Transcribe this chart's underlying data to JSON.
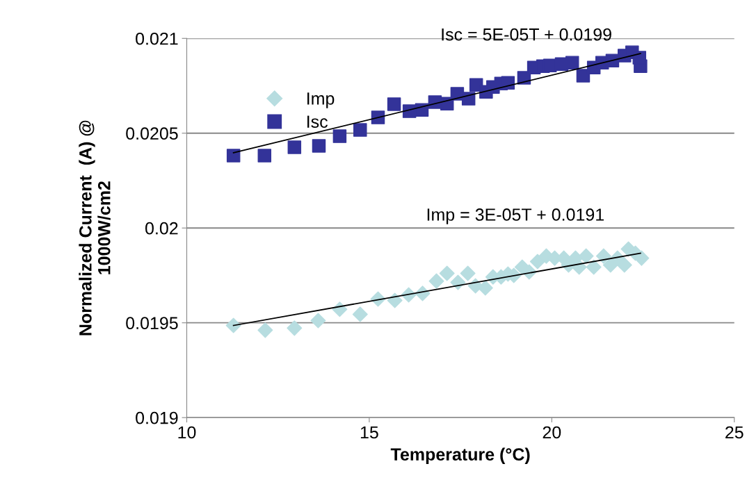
{
  "chart_data": {
    "type": "scatter",
    "xlabel": "Temperature (°C)",
    "ylabel": "Normalized Current  (A) @\n1000W/cm2",
    "xlim": [
      10,
      25
    ],
    "xticks": [
      10,
      15,
      20,
      25
    ],
    "ylim": [
      0.019,
      0.021
    ],
    "yticks": [
      0.019,
      0.0195,
      0.02,
      0.0205,
      0.021
    ],
    "grid": "y",
    "legend": "upper left",
    "annotations": [
      "Isc = 5E-05T + 0.0199",
      "Imp = 3E-05T + 0.0191"
    ],
    "series": [
      {
        "name": "Imp",
        "color": "#b7dde0",
        "marker": "diamond",
        "x": [
          11.28,
          12.15,
          12.95,
          13.6,
          14.19,
          14.75,
          15.24,
          15.7,
          16.08,
          16.46,
          16.84,
          17.13,
          17.43,
          17.7,
          17.91,
          18.18,
          18.39,
          18.61,
          18.8,
          18.96,
          19.19,
          19.38,
          19.61,
          19.85,
          20.08,
          20.33,
          20.46,
          20.65,
          20.75,
          20.94,
          21.15,
          21.42,
          21.61,
          21.8,
          21.99,
          22.1,
          22.29,
          22.46
        ],
        "values": [
          0.019486,
          0.019461,
          0.019472,
          0.019512,
          0.019571,
          0.019545,
          0.019625,
          0.019618,
          0.019647,
          0.019655,
          0.01972,
          0.019761,
          0.019713,
          0.019761,
          0.019695,
          0.019684,
          0.019742,
          0.019742,
          0.019757,
          0.01975,
          0.019794,
          0.019768,
          0.019823,
          0.019852,
          0.019841,
          0.019841,
          0.019805,
          0.019841,
          0.019794,
          0.019852,
          0.019794,
          0.019852,
          0.019805,
          0.019841,
          0.019805,
          0.019889,
          0.019867,
          0.019841
        ]
      },
      {
        "name": "Isc",
        "color": "#333399",
        "marker": "square",
        "x": [
          11.28,
          12.13,
          12.95,
          13.62,
          14.19,
          14.75,
          15.24,
          15.68,
          16.1,
          16.44,
          16.8,
          17.13,
          17.41,
          17.72,
          17.93,
          18.2,
          18.39,
          18.61,
          18.8,
          19.05,
          19.24,
          19.51,
          19.76,
          19.95,
          20.27,
          20.56,
          20.86,
          21.15,
          21.38,
          21.66,
          21.99,
          22.2,
          22.43,
          22.4
        ],
        "values": [
          0.020382,
          0.020382,
          0.020426,
          0.020433,
          0.020484,
          0.020517,
          0.020583,
          0.020653,
          0.020616,
          0.020623,
          0.020664,
          0.020656,
          0.020708,
          0.020682,
          0.020755,
          0.020718,
          0.020744,
          0.020762,
          0.020766,
          null,
          0.020792,
          0.020846,
          0.020854,
          0.020857,
          0.020865,
          0.020872,
          0.020803,
          0.020846,
          0.020872,
          0.020883,
          0.020909,
          0.020927,
          0.020854,
          0.020898
        ]
      },
      {
        "type": "line",
        "color": "#000000",
        "marker": "none",
        "x": [
          11.28,
          22.43
        ],
        "values": [
          0.020397,
          0.02092
        ]
      },
      {
        "type": "line",
        "color": "#000000",
        "marker": "none",
        "x": [
          11.28,
          22.43
        ],
        "values": [
          0.019486,
          0.019867
        ]
      }
    ]
  }
}
